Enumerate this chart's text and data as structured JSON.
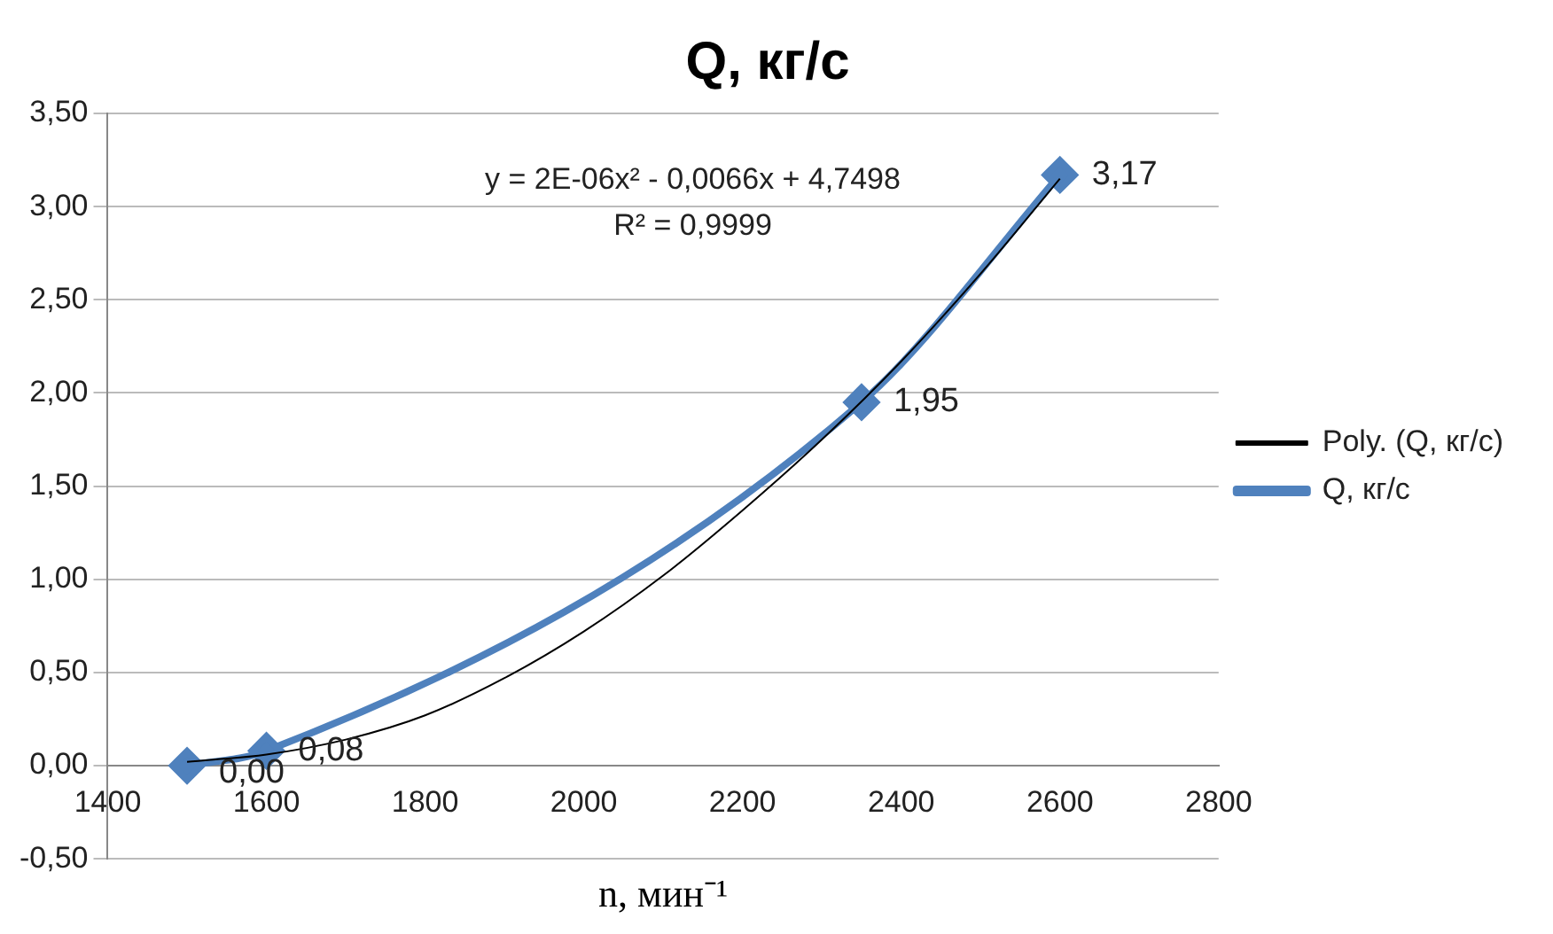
{
  "chart_data": {
    "type": "line",
    "title": "Q, кг/с",
    "xlabel": "n, мин⁻¹",
    "xlim": [
      1400,
      2800
    ],
    "xticks": [
      1400,
      1600,
      1800,
      2000,
      2200,
      2400,
      2600,
      2800
    ],
    "ylim": [
      -0.5,
      3.5
    ],
    "yticks": [
      {
        "value": -0.5,
        "label": "-0,50"
      },
      {
        "value": 0,
        "label": "0,00"
      },
      {
        "value": 0.5,
        "label": "0,50"
      },
      {
        "value": 1,
        "label": "1,00"
      },
      {
        "value": 1.5,
        "label": "1,50"
      },
      {
        "value": 2,
        "label": "2,00"
      },
      {
        "value": 2.5,
        "label": "2,50"
      },
      {
        "value": 3,
        "label": "3,00"
      },
      {
        "value": 3.5,
        "label": "3,50"
      }
    ],
    "grid": "y",
    "legend": "right",
    "series": [
      {
        "name": "Q, кг/с",
        "color": "#4f81bd",
        "marker": "diamond",
        "x": [
          1500,
          1600,
          2350,
          2600
        ],
        "values": [
          0,
          0.08,
          1.95,
          3.17
        ],
        "value_labels": [
          "0,00",
          "0,08",
          "1,95",
          "3,17"
        ]
      },
      {
        "name": "Poly. (Q, кг/с)",
        "color": "#000000",
        "marker": "none",
        "x": [
          1500,
          1600,
          1700,
          1800,
          1900,
          2000,
          2100,
          2200,
          2300,
          2400,
          2500,
          2600
        ],
        "values": [
          0.02,
          0.06,
          0.14,
          0.27,
          0.47,
          0.72,
          1.02,
          1.37,
          1.75,
          2.17,
          2.64,
          3.15
        ]
      }
    ],
    "annotations": [
      "y = 2E-06x² - 0,0066x + 4,7498",
      "R² = 0,9999"
    ]
  }
}
